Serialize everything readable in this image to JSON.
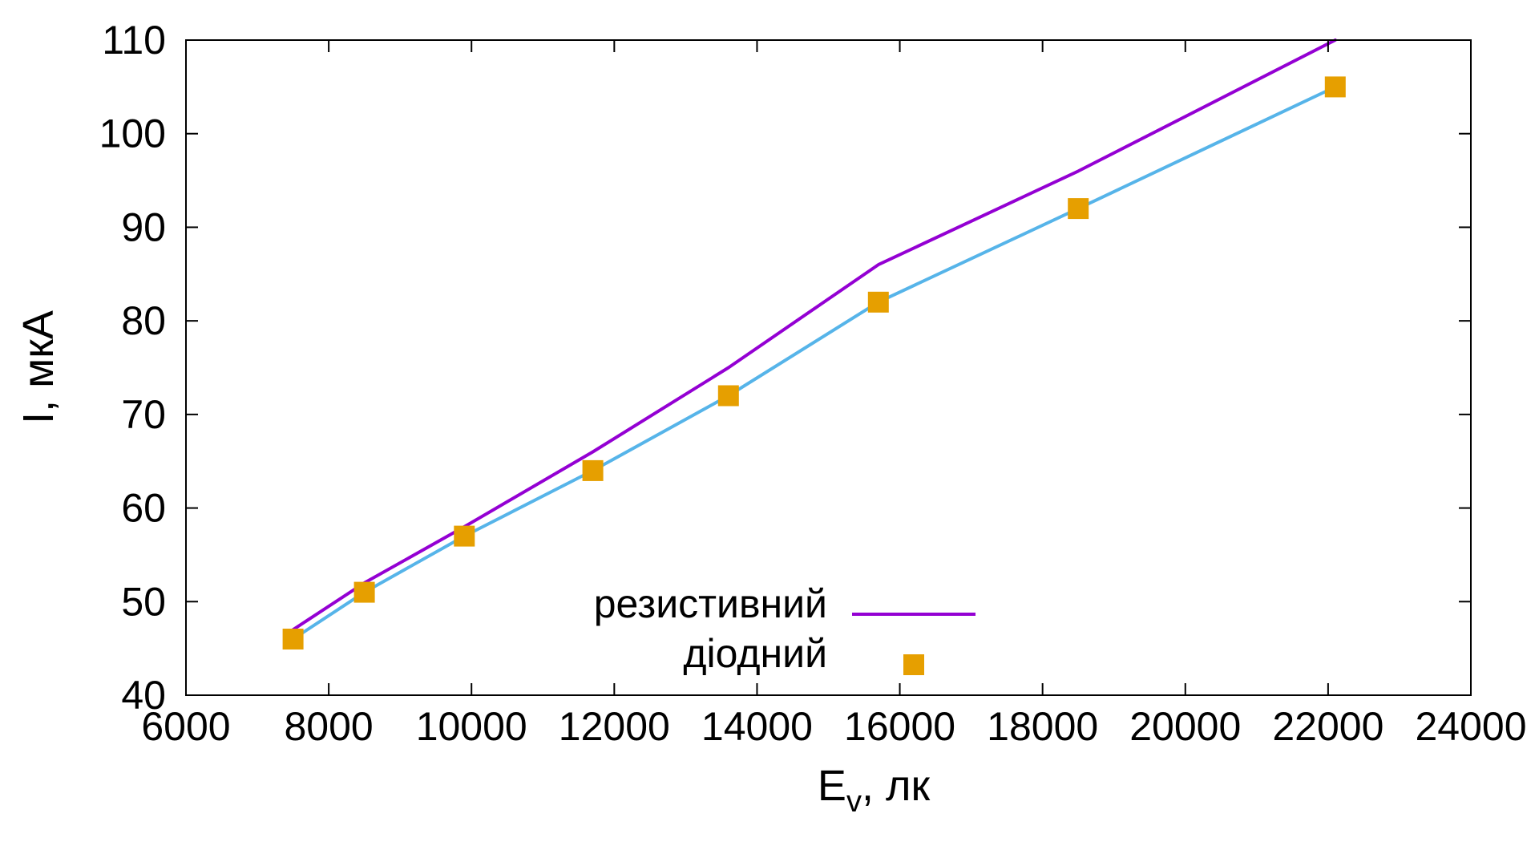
{
  "chart_data": {
    "type": "line",
    "title": "",
    "xlabel": "E",
    "xlabel_sub": "v",
    "xlabel_suffix": ", лк",
    "ylabel": "I, мкА",
    "xlim": [
      6000,
      24000
    ],
    "ylim": [
      40,
      110
    ],
    "xticks": [
      6000,
      8000,
      10000,
      12000,
      14000,
      16000,
      18000,
      20000,
      22000,
      24000
    ],
    "yticks": [
      40,
      50,
      60,
      70,
      80,
      90,
      100,
      110
    ],
    "grid": false,
    "legend_position": "bottom-center",
    "series": [
      {
        "name": "резистивний",
        "style": "line",
        "color": "#9400d3",
        "x": [
          7500,
          8500,
          9900,
          11700,
          13600,
          15700,
          18500,
          22100
        ],
        "y": [
          47,
          52,
          58,
          66,
          75,
          86,
          96,
          110
        ]
      },
      {
        "name": "діодний",
        "style": "points",
        "color": "#e69f00",
        "x": [
          7500,
          8500,
          9900,
          11700,
          13600,
          15700,
          18500,
          22100
        ],
        "y": [
          46,
          51,
          57,
          64,
          72,
          82,
          92,
          105
        ]
      },
      {
        "name": "",
        "style": "line",
        "color": "#56b4e9",
        "x": [
          7500,
          8500,
          9900,
          11700,
          13600,
          15700,
          18500,
          22100
        ],
        "y": [
          46,
          51,
          57,
          64,
          72,
          82,
          92,
          105
        ]
      }
    ]
  }
}
